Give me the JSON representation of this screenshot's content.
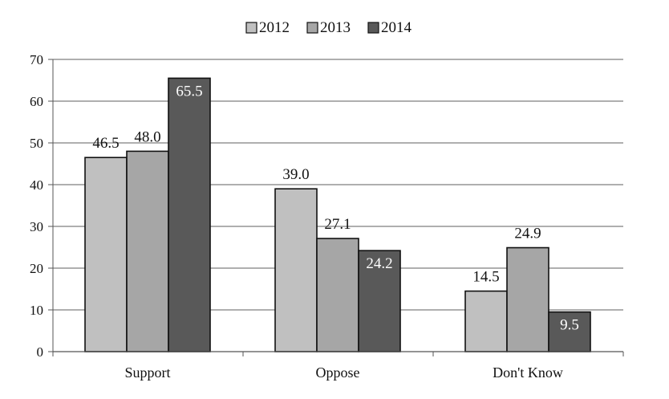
{
  "chart_data": {
    "type": "bar",
    "title": "",
    "xlabel": "",
    "ylabel": "",
    "categories": [
      "Support",
      "Oppose",
      "Don't Know"
    ],
    "series": [
      {
        "name": "2012",
        "values": [
          46.5,
          39.0,
          14.5
        ],
        "labels": [
          "46.5",
          "39.0",
          "14.5"
        ],
        "color": "#c0c0c0"
      },
      {
        "name": "2013",
        "values": [
          48.0,
          27.1,
          24.9
        ],
        "labels": [
          "48.0",
          "27.1",
          "24.9"
        ],
        "color": "#a6a6a6"
      },
      {
        "name": "2014",
        "values": [
          65.5,
          24.2,
          9.5
        ],
        "labels": [
          "65.5",
          "24.2",
          "9.5"
        ],
        "color": "#595959"
      }
    ],
    "ylim": [
      0,
      70
    ],
    "yticks": [
      0,
      10,
      20,
      30,
      40,
      50,
      60,
      70
    ],
    "grid": true,
    "legend_position": "top-center"
  }
}
